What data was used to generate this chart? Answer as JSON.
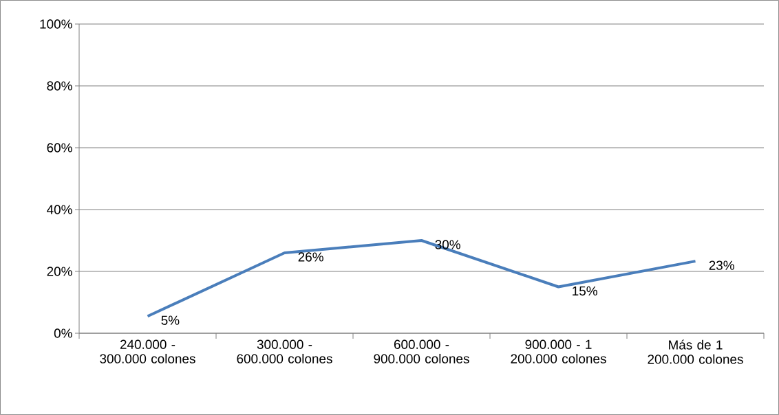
{
  "chart_data": {
    "type": "line",
    "categories": [
      "240.000 - 300.000 colones",
      "300.000 - 600.000 colones",
      "600.000 - 900.000 colones",
      "900.000 - 1 200.000 colones",
      "Más de 1 200.000 colones"
    ],
    "values": [
      5.5,
      26,
      30,
      15,
      23.3
    ],
    "value_labels": [
      "5%",
      "26%",
      "30%",
      "15%",
      "23%"
    ],
    "color": "#4a7ebb",
    "ylim": [
      0,
      100
    ],
    "yticks": [
      {
        "value": 0,
        "label": "0%"
      },
      {
        "value": 20,
        "label": "20%"
      },
      {
        "value": 40,
        "label": "40%"
      },
      {
        "value": 60,
        "label": "60%"
      },
      {
        "value": 80,
        "label": "80%"
      },
      {
        "value": 100,
        "label": "100%"
      }
    ],
    "grid": "y",
    "marker": "none",
    "line_style": "solid"
  }
}
